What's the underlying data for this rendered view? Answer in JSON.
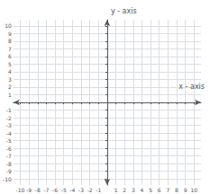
{
  "chart_data": {
    "type": "scatter",
    "xlabel": "x - axis",
    "ylabel": "y - axis",
    "xlim": [
      -10.8,
      10.8
    ],
    "ylim": [
      -10.8,
      10.8
    ],
    "xticks": [
      -10,
      -9,
      -8,
      -7,
      -6,
      -5,
      -4,
      -3,
      -2,
      -1,
      1,
      2,
      3,
      4,
      5,
      6,
      7,
      8,
      9,
      10
    ],
    "yticks": [
      -10,
      -9,
      -8,
      -7,
      -6,
      -5,
      -4,
      -3,
      -2,
      -1,
      1,
      2,
      3,
      4,
      5,
      6,
      7,
      8,
      9,
      10
    ],
    "grid": true
  }
}
